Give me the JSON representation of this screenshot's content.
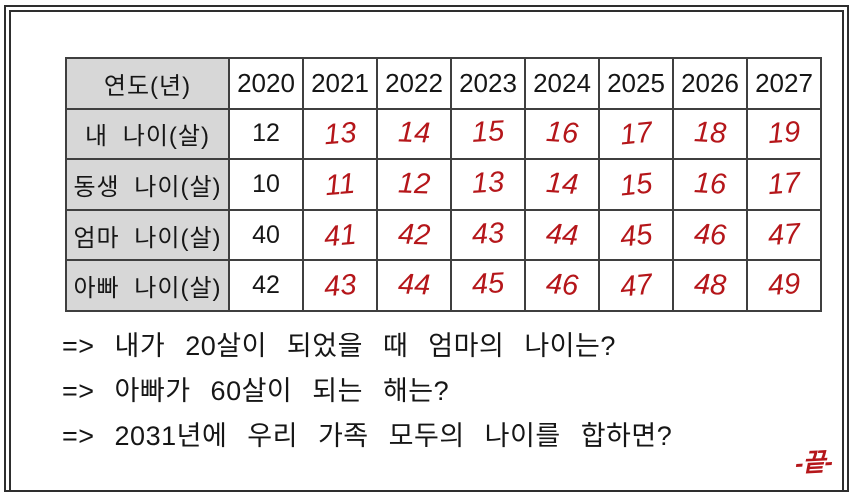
{
  "table": {
    "header": {
      "label": "연도(년)",
      "years": [
        "2020",
        "2021",
        "2022",
        "2023",
        "2024",
        "2025",
        "2026",
        "2027"
      ]
    },
    "rows": [
      {
        "label": "내 나이(살)",
        "printed": "12",
        "handwritten": [
          "13",
          "14",
          "15",
          "16",
          "17",
          "18",
          "19"
        ]
      },
      {
        "label": "동생 나이(살)",
        "printed": "10",
        "handwritten": [
          "11",
          "12",
          "13",
          "14",
          "15",
          "16",
          "17"
        ]
      },
      {
        "label": "엄마 나이(살)",
        "printed": "40",
        "handwritten": [
          "41",
          "42",
          "43",
          "44",
          "45",
          "46",
          "47"
        ]
      },
      {
        "label": "아빠 나이(살)",
        "printed": "42",
        "handwritten": [
          "43",
          "44",
          "45",
          "46",
          "47",
          "48",
          "49"
        ]
      }
    ]
  },
  "questions": [
    "=> 내가 20살이 되었을 때 엄마의 나이는?",
    "=> 아빠가 60살이 되는 해는?",
    "=> 2031년에 우리 가족 모두의 나이를 합하면?"
  ],
  "end_mark": "-끝-",
  "colors": {
    "handwriting_red": "#b5161a",
    "label_cell_bg": "#d7d7d7",
    "table_border": "#3f3f3f",
    "text": "#161616",
    "frame": "#2e2e2e"
  }
}
